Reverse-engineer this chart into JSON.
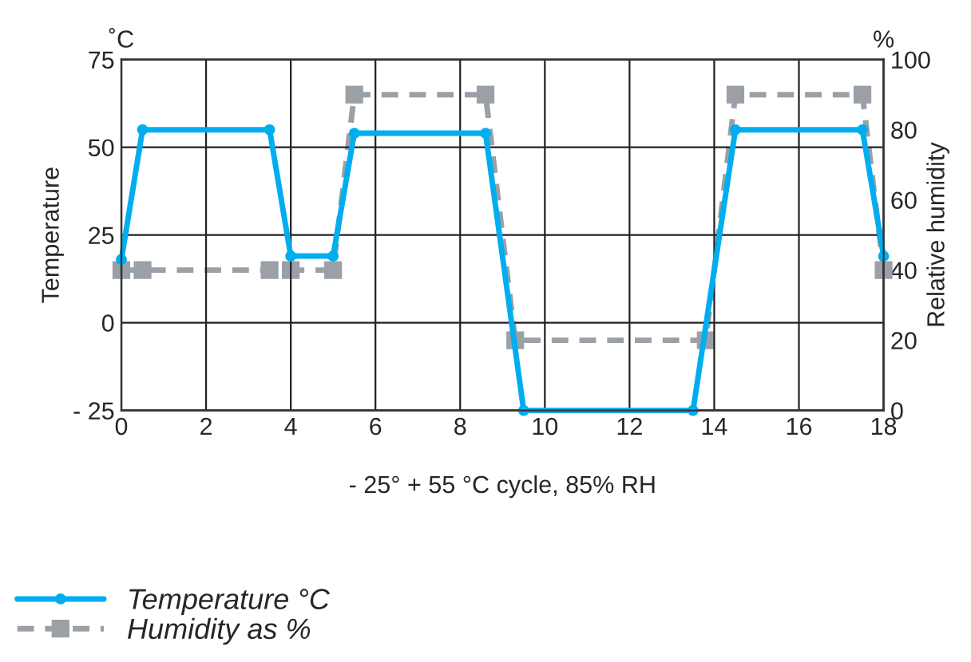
{
  "chart_data": {
    "type": "line",
    "xlabel": "- 25° + 55 °C cycle, 85% RH",
    "ylabel": "Temperature",
    "y2label": "Relative humidity",
    "annotations": [
      "˚C",
      "%"
    ],
    "xlim": [
      0,
      18
    ],
    "xticks": [
      0,
      2,
      4,
      6,
      8,
      10,
      12,
      14,
      16,
      18
    ],
    "ylim": [
      -25,
      75
    ],
    "yticks": [
      {
        "value": -25,
        "label": "- 25"
      },
      0,
      25,
      50,
      75
    ],
    "y2lim": [
      0,
      100
    ],
    "y2ticks": [
      0,
      20,
      40,
      60,
      80,
      100
    ],
    "grid": true,
    "legend": "bottom left",
    "series": [
      {
        "name": "Temperature °C",
        "color": "#00aeef",
        "marker": "circle",
        "line_style": "solid",
        "x": [
          0,
          0.5,
          3.5,
          4,
          5,
          5.5,
          8.6,
          9.5,
          13.5,
          14.5,
          17.5,
          18
        ],
        "values": [
          18,
          55,
          55,
          19,
          19,
          54,
          54,
          -25,
          -25,
          55,
          55,
          19
        ]
      },
      {
        "name": "Humidity as %",
        "color": "#9aa0a6",
        "marker": "square",
        "line_style": "dashed",
        "axis": "y2",
        "x": [
          0,
          0.5,
          3.5,
          4,
          5,
          5.5,
          8.6,
          9.3,
          13.8,
          14.5,
          17.5,
          18
        ],
        "values": [
          40,
          40,
          40,
          40,
          40,
          90,
          90,
          20,
          20,
          90,
          90,
          40
        ]
      }
    ]
  }
}
